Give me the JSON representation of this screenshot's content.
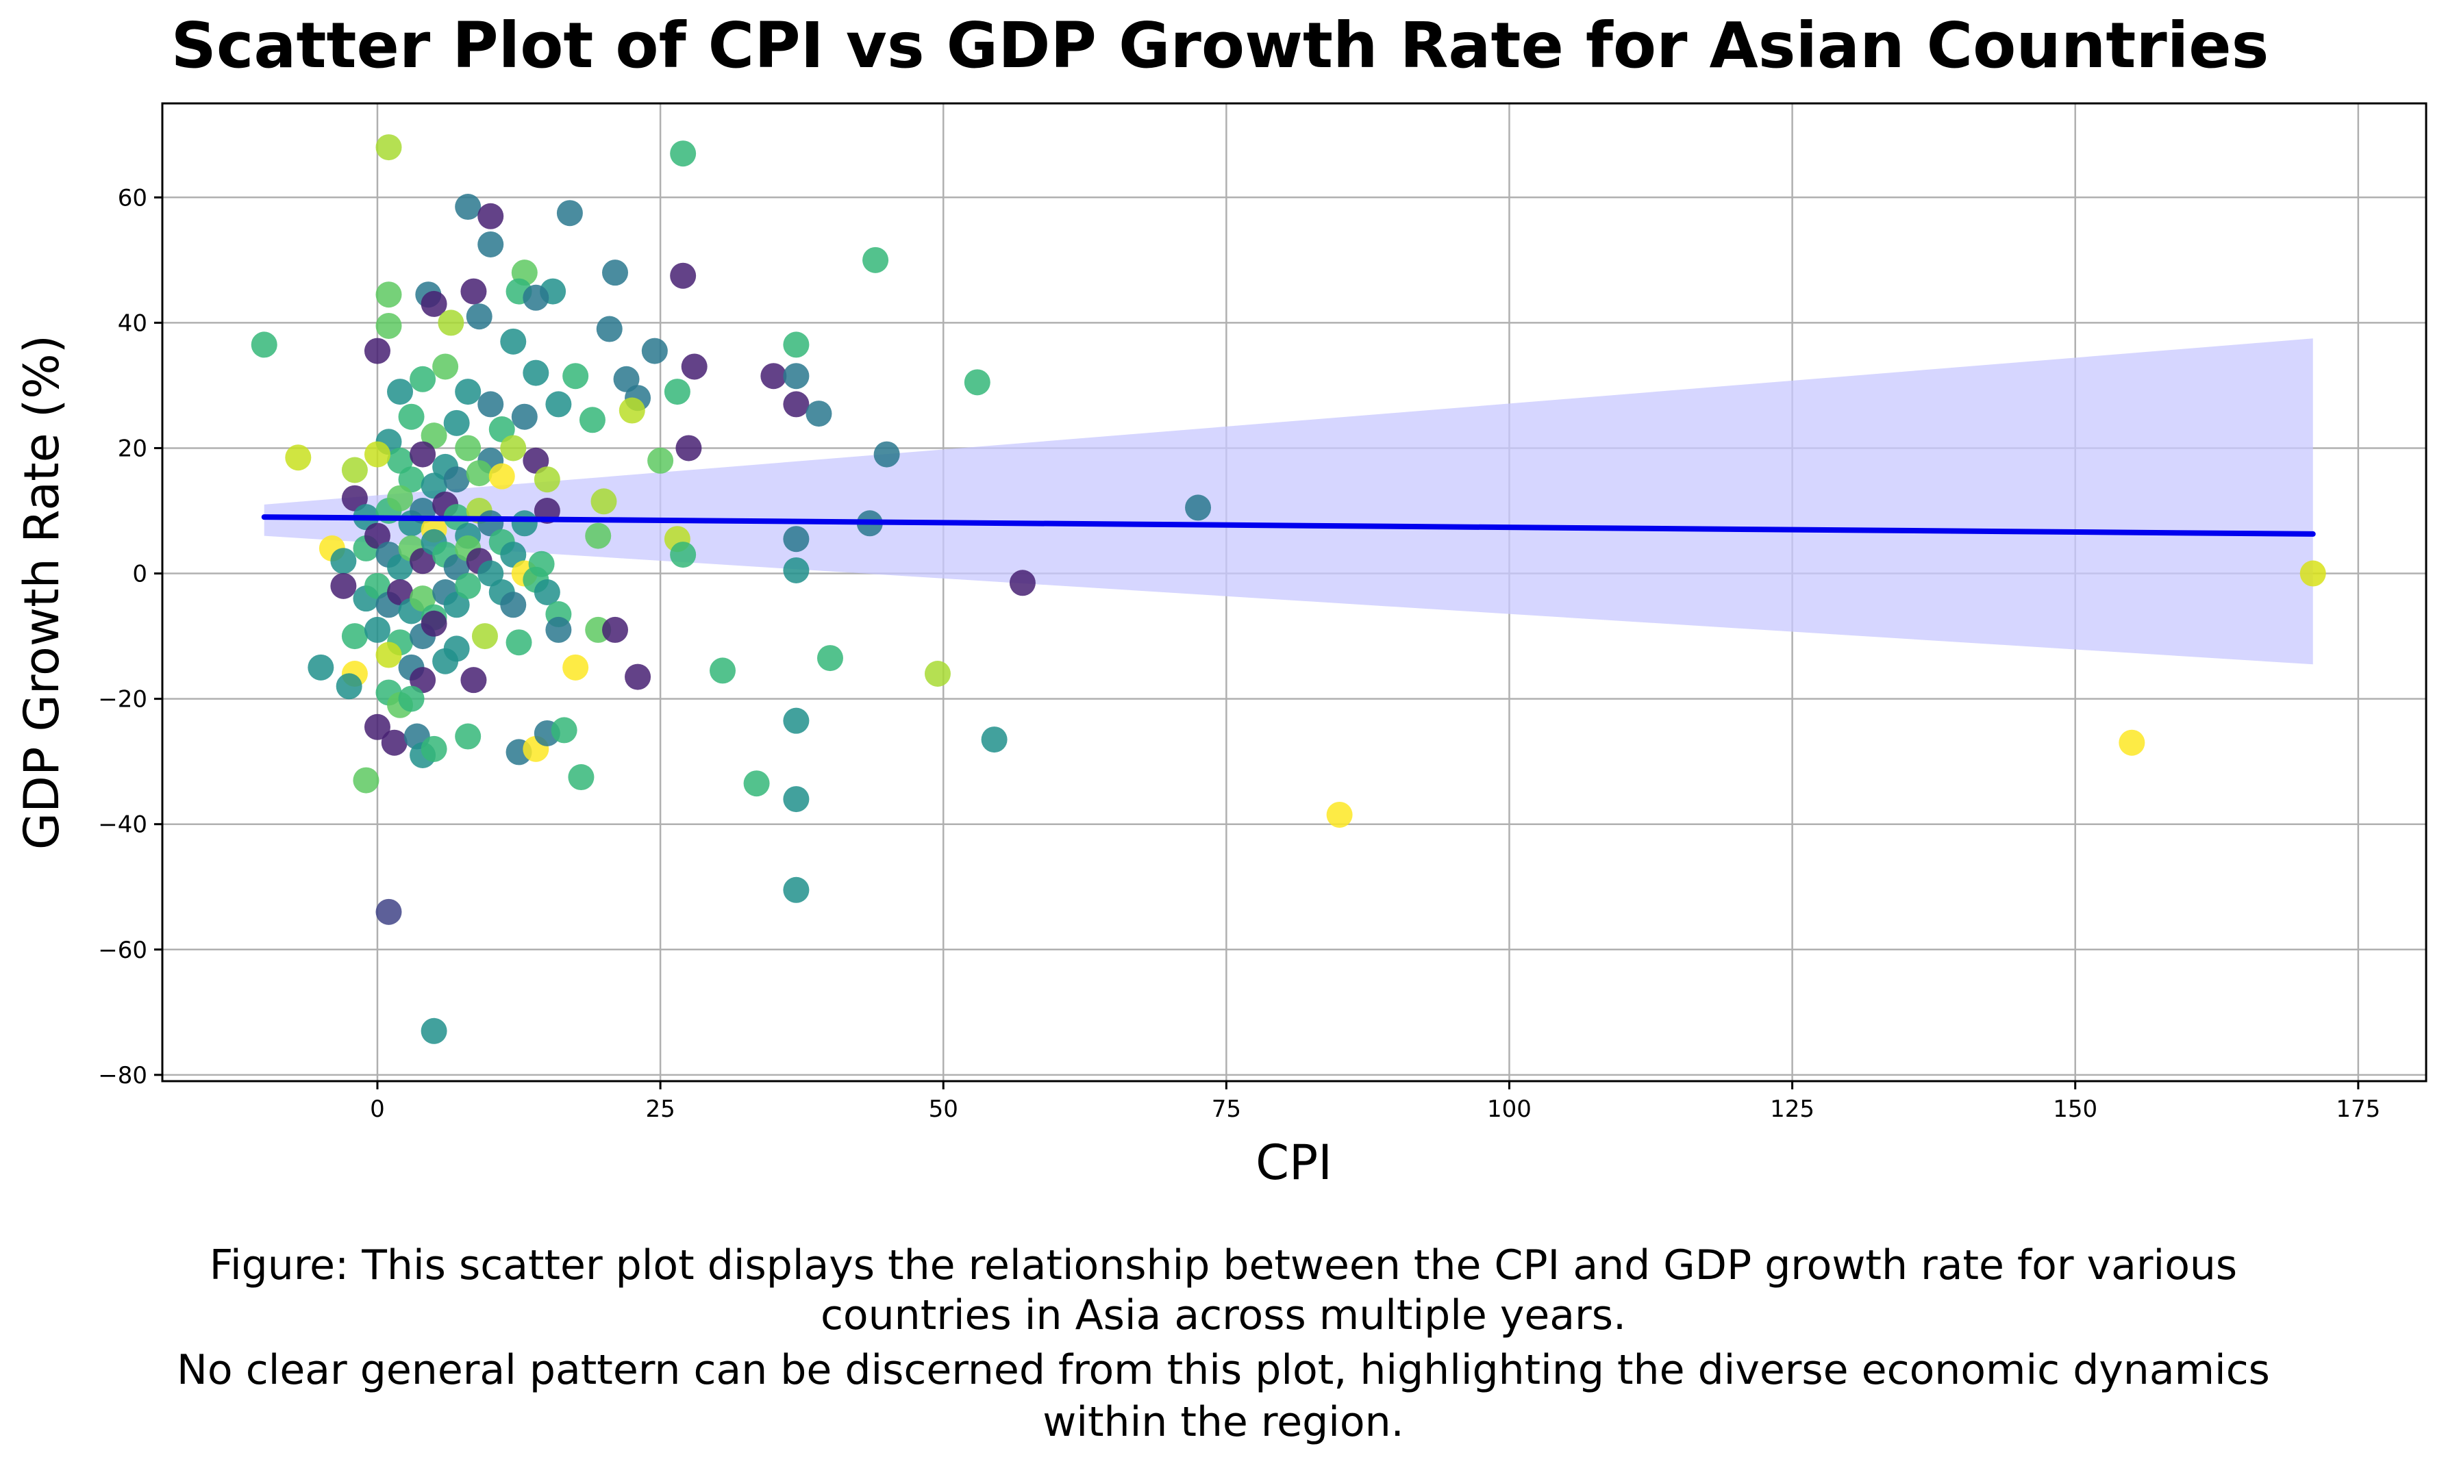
{
  "chart_data": {
    "type": "scatter",
    "title": "Scatter Plot of CPI vs GDP Growth Rate for Asian Countries",
    "xlabel": "CPI",
    "ylabel": "GDP Growth Rate (%)",
    "xlim": [
      -19,
      181
    ],
    "ylim": [
      -81,
      75
    ],
    "xticks": [
      0,
      25,
      50,
      75,
      100,
      125,
      150,
      175
    ],
    "yticks": [
      -80,
      -60,
      -40,
      -20,
      0,
      20,
      40,
      60
    ],
    "xtick_labels": [
      "0",
      "25",
      "50",
      "75",
      "100",
      "125",
      "150",
      "175"
    ],
    "ytick_labels": [
      "−80",
      "−60",
      "−40",
      "−20",
      "0",
      "20",
      "40",
      "60"
    ],
    "grid": true,
    "regression": {
      "line": [
        [
          -10,
          9.0
        ],
        [
          171,
          6.3
        ]
      ],
      "ci_upper": [
        [
          -10,
          11.0
        ],
        [
          171,
          37.5
        ]
      ],
      "ci_lower": [
        [
          -10,
          6.0
        ],
        [
          171,
          -14.5
        ]
      ],
      "line_color": "#0000ee",
      "band_color": "#c8c8ff"
    },
    "points": [
      {
        "x": 1,
        "y": 68,
        "c": "#a8db34"
      },
      {
        "x": 27,
        "y": 67,
        "c": "#35b779"
      },
      {
        "x": 8,
        "y": 58.5,
        "c": "#2a788e"
      },
      {
        "x": 17,
        "y": 57.5,
        "c": "#2a788e"
      },
      {
        "x": 10,
        "y": 57,
        "c": "#482173"
      },
      {
        "x": 10,
        "y": 52.5,
        "c": "#2a788e"
      },
      {
        "x": 44,
        "y": 50,
        "c": "#35b779"
      },
      {
        "x": 27,
        "y": 47.5,
        "c": "#482173"
      },
      {
        "x": 21,
        "y": 48,
        "c": "#2a788e"
      },
      {
        "x": 13,
        "y": 48,
        "c": "#5ec962"
      },
      {
        "x": 1,
        "y": 44.5,
        "c": "#5ec962"
      },
      {
        "x": 4.5,
        "y": 44.5,
        "c": "#2a788e"
      },
      {
        "x": 5,
        "y": 43,
        "c": "#482173"
      },
      {
        "x": 8.5,
        "y": 45,
        "c": "#482173"
      },
      {
        "x": 12.5,
        "y": 45,
        "c": "#35b779"
      },
      {
        "x": 15.5,
        "y": 45,
        "c": "#21918c"
      },
      {
        "x": 14,
        "y": 44,
        "c": "#2a788e"
      },
      {
        "x": 9,
        "y": 41,
        "c": "#2a788e"
      },
      {
        "x": 1,
        "y": 39.5,
        "c": "#5ec962"
      },
      {
        "x": 6.5,
        "y": 40,
        "c": "#a8db34"
      },
      {
        "x": 20.5,
        "y": 39,
        "c": "#2a788e"
      },
      {
        "x": -10,
        "y": 36.5,
        "c": "#35b779"
      },
      {
        "x": 37,
        "y": 36.5,
        "c": "#35b779"
      },
      {
        "x": 12,
        "y": 37,
        "c": "#21918c"
      },
      {
        "x": 0,
        "y": 35.5,
        "c": "#482173"
      },
      {
        "x": 24.5,
        "y": 35.5,
        "c": "#2a788e"
      },
      {
        "x": 28,
        "y": 33,
        "c": "#482173"
      },
      {
        "x": 35,
        "y": 31.5,
        "c": "#482173"
      },
      {
        "x": 37,
        "y": 31.5,
        "c": "#2a788e"
      },
      {
        "x": 53,
        "y": 30.5,
        "c": "#35b779"
      },
      {
        "x": 22,
        "y": 31,
        "c": "#2a788e"
      },
      {
        "x": 14,
        "y": 32,
        "c": "#21918c"
      },
      {
        "x": 17.5,
        "y": 31.5,
        "c": "#35b779"
      },
      {
        "x": 26.5,
        "y": 29,
        "c": "#35b779"
      },
      {
        "x": 37,
        "y": 27,
        "c": "#482173"
      },
      {
        "x": 39,
        "y": 25.5,
        "c": "#2a788e"
      },
      {
        "x": 23,
        "y": 28,
        "c": "#2a788e"
      },
      {
        "x": 22.5,
        "y": 26,
        "c": "#bade28"
      },
      {
        "x": 19,
        "y": 24.5,
        "c": "#35b779"
      },
      {
        "x": 16,
        "y": 27,
        "c": "#21918c"
      },
      {
        "x": 2,
        "y": 29,
        "c": "#21918c"
      },
      {
        "x": 4,
        "y": 31,
        "c": "#35b779"
      },
      {
        "x": 6,
        "y": 33,
        "c": "#5ec962"
      },
      {
        "x": 8,
        "y": 29,
        "c": "#21918c"
      },
      {
        "x": 10,
        "y": 27,
        "c": "#2a788e"
      },
      {
        "x": 3,
        "y": 25,
        "c": "#35b779"
      },
      {
        "x": 5,
        "y": 22,
        "c": "#5ec962"
      },
      {
        "x": 7,
        "y": 24,
        "c": "#21918c"
      },
      {
        "x": 11,
        "y": 23,
        "c": "#35b779"
      },
      {
        "x": 13,
        "y": 25,
        "c": "#2a788e"
      },
      {
        "x": 1,
        "y": 21,
        "c": "#21918c"
      },
      {
        "x": 2,
        "y": 18,
        "c": "#35b779"
      },
      {
        "x": 4,
        "y": 19,
        "c": "#482173"
      },
      {
        "x": 6,
        "y": 17,
        "c": "#21918c"
      },
      {
        "x": 8,
        "y": 20,
        "c": "#5ec962"
      },
      {
        "x": 10,
        "y": 18,
        "c": "#2a788e"
      },
      {
        "x": 12,
        "y": 20,
        "c": "#a8db34"
      },
      {
        "x": 14,
        "y": 18,
        "c": "#482173"
      },
      {
        "x": -7,
        "y": 18.5,
        "c": "#c8e020"
      },
      {
        "x": 0,
        "y": 19,
        "c": "#c8e020"
      },
      {
        "x": -2,
        "y": 16.5,
        "c": "#a8db34"
      },
      {
        "x": 3,
        "y": 15,
        "c": "#35b779"
      },
      {
        "x": 5,
        "y": 14,
        "c": "#21918c"
      },
      {
        "x": 7,
        "y": 15,
        "c": "#2a788e"
      },
      {
        "x": 9,
        "y": 16,
        "c": "#5ec962"
      },
      {
        "x": 11,
        "y": 15.5,
        "c": "#fde725"
      },
      {
        "x": 15,
        "y": 15,
        "c": "#a8db34"
      },
      {
        "x": 20,
        "y": 11.5,
        "c": "#a8db34"
      },
      {
        "x": 25,
        "y": 18,
        "c": "#5ec962"
      },
      {
        "x": 27.5,
        "y": 20,
        "c": "#482173"
      },
      {
        "x": 45,
        "y": 19,
        "c": "#2a788e"
      },
      {
        "x": 72.5,
        "y": 10.5,
        "c": "#2a788e"
      },
      {
        "x": 43.5,
        "y": 8,
        "c": "#2a788e"
      },
      {
        "x": 19.5,
        "y": 6,
        "c": "#5ec962"
      },
      {
        "x": 15,
        "y": 10,
        "c": "#482173"
      },
      {
        "x": 13,
        "y": 8,
        "c": "#21918c"
      },
      {
        "x": -2,
        "y": 12,
        "c": "#482173"
      },
      {
        "x": -1,
        "y": 9,
        "c": "#21918c"
      },
      {
        "x": 1,
        "y": 10,
        "c": "#35b779"
      },
      {
        "x": 2,
        "y": 12,
        "c": "#5ec962"
      },
      {
        "x": 3,
        "y": 8,
        "c": "#21918c"
      },
      {
        "x": 4,
        "y": 10,
        "c": "#2a788e"
      },
      {
        "x": 5,
        "y": 7,
        "c": "#fde725"
      },
      {
        "x": 6,
        "y": 11,
        "c": "#482173"
      },
      {
        "x": 7,
        "y": 9,
        "c": "#35b779"
      },
      {
        "x": 8,
        "y": 6,
        "c": "#21918c"
      },
      {
        "x": 9,
        "y": 10,
        "c": "#a8db34"
      },
      {
        "x": 10,
        "y": 8,
        "c": "#2a788e"
      },
      {
        "x": 11,
        "y": 5,
        "c": "#35b779"
      },
      {
        "x": 12,
        "y": 3,
        "c": "#21918c"
      },
      {
        "x": -4,
        "y": 4,
        "c": "#fde725"
      },
      {
        "x": -3,
        "y": 2,
        "c": "#21918c"
      },
      {
        "x": -1,
        "y": 4,
        "c": "#35b779"
      },
      {
        "x": 0,
        "y": 6,
        "c": "#482173"
      },
      {
        "x": 1,
        "y": 3,
        "c": "#2a788e"
      },
      {
        "x": 2,
        "y": 1,
        "c": "#21918c"
      },
      {
        "x": 3,
        "y": 4,
        "c": "#5ec962"
      },
      {
        "x": 4,
        "y": 2,
        "c": "#482173"
      },
      {
        "x": 5,
        "y": 5,
        "c": "#21918c"
      },
      {
        "x": 6,
        "y": 3,
        "c": "#35b779"
      },
      {
        "x": 7,
        "y": 1,
        "c": "#2a788e"
      },
      {
        "x": 8,
        "y": 4,
        "c": "#5ec962"
      },
      {
        "x": 9,
        "y": 2,
        "c": "#482173"
      },
      {
        "x": 10,
        "y": 0,
        "c": "#21918c"
      },
      {
        "x": 13,
        "y": 0,
        "c": "#fde725"
      },
      {
        "x": 14.5,
        "y": 1.5,
        "c": "#35b779"
      },
      {
        "x": 26.5,
        "y": 5.5,
        "c": "#bade28"
      },
      {
        "x": 27,
        "y": 3,
        "c": "#35b779"
      },
      {
        "x": 37,
        "y": 5.5,
        "c": "#2a788e"
      },
      {
        "x": 37,
        "y": 0.5,
        "c": "#21918c"
      },
      {
        "x": 57,
        "y": -1.5,
        "c": "#482173"
      },
      {
        "x": 171,
        "y": 0,
        "c": "#d8e219"
      },
      {
        "x": -3,
        "y": -2,
        "c": "#482173"
      },
      {
        "x": -1,
        "y": -4,
        "c": "#21918c"
      },
      {
        "x": 0,
        "y": -2,
        "c": "#35b779"
      },
      {
        "x": 1,
        "y": -5,
        "c": "#2a788e"
      },
      {
        "x": 2,
        "y": -3,
        "c": "#482173"
      },
      {
        "x": 3,
        "y": -6,
        "c": "#21918c"
      },
      {
        "x": 4,
        "y": -4,
        "c": "#5ec962"
      },
      {
        "x": 5,
        "y": -7,
        "c": "#35b779"
      },
      {
        "x": 6,
        "y": -3,
        "c": "#2a788e"
      },
      {
        "x": 7,
        "y": -5,
        "c": "#21918c"
      },
      {
        "x": 8,
        "y": -2,
        "c": "#35b779"
      },
      {
        "x": 11,
        "y": -3,
        "c": "#21918c"
      },
      {
        "x": 12,
        "y": -5,
        "c": "#2a788e"
      },
      {
        "x": 14,
        "y": -1,
        "c": "#35b779"
      },
      {
        "x": 15,
        "y": -3,
        "c": "#21918c"
      },
      {
        "x": 16,
        "y": -6.5,
        "c": "#35b779"
      },
      {
        "x": 16,
        "y": -9,
        "c": "#2a788e"
      },
      {
        "x": 19.5,
        "y": -9,
        "c": "#5ec962"
      },
      {
        "x": 21,
        "y": -9,
        "c": "#482173"
      },
      {
        "x": -2,
        "y": -10,
        "c": "#35b779"
      },
      {
        "x": 0,
        "y": -9,
        "c": "#21918c"
      },
      {
        "x": 2,
        "y": -11,
        "c": "#35b779"
      },
      {
        "x": 4,
        "y": -10,
        "c": "#2a788e"
      },
      {
        "x": 5,
        "y": -8,
        "c": "#482173"
      },
      {
        "x": 7,
        "y": -12,
        "c": "#21918c"
      },
      {
        "x": 9.5,
        "y": -10,
        "c": "#a8db34"
      },
      {
        "x": 12.5,
        "y": -11,
        "c": "#35b779"
      },
      {
        "x": -5,
        "y": -15,
        "c": "#21918c"
      },
      {
        "x": -2,
        "y": -16,
        "c": "#fde725"
      },
      {
        "x": 1,
        "y": -13,
        "c": "#c8e020"
      },
      {
        "x": 3,
        "y": -15,
        "c": "#2a788e"
      },
      {
        "x": 4,
        "y": -17,
        "c": "#482173"
      },
      {
        "x": 6,
        "y": -14,
        "c": "#21918c"
      },
      {
        "x": 8.5,
        "y": -17,
        "c": "#482173"
      },
      {
        "x": -2.5,
        "y": -18,
        "c": "#21918c"
      },
      {
        "x": 1,
        "y": -19,
        "c": "#35b779"
      },
      {
        "x": 2,
        "y": -21,
        "c": "#5ec962"
      },
      {
        "x": 3,
        "y": -20,
        "c": "#35b779"
      },
      {
        "x": 17.5,
        "y": -15,
        "c": "#fde725"
      },
      {
        "x": 23,
        "y": -16.5,
        "c": "#482173"
      },
      {
        "x": 30.5,
        "y": -15.5,
        "c": "#35b779"
      },
      {
        "x": 40,
        "y": -13.5,
        "c": "#35b779"
      },
      {
        "x": 49.5,
        "y": -16,
        "c": "#a8db34"
      },
      {
        "x": 37,
        "y": -23.5,
        "c": "#21918c"
      },
      {
        "x": 0,
        "y": -24.5,
        "c": "#482173"
      },
      {
        "x": 1.5,
        "y": -27,
        "c": "#482173"
      },
      {
        "x": 3.5,
        "y": -26,
        "c": "#2a788e"
      },
      {
        "x": 4,
        "y": -29,
        "c": "#21918c"
      },
      {
        "x": 5,
        "y": -28,
        "c": "#35b779"
      },
      {
        "x": 8,
        "y": -26,
        "c": "#35b779"
      },
      {
        "x": 12.5,
        "y": -28.5,
        "c": "#2a788e"
      },
      {
        "x": 14,
        "y": -28,
        "c": "#fde725"
      },
      {
        "x": 15,
        "y": -25.5,
        "c": "#2a788e"
      },
      {
        "x": 16.5,
        "y": -25,
        "c": "#35b779"
      },
      {
        "x": 54.5,
        "y": -26.5,
        "c": "#21918c"
      },
      {
        "x": 155,
        "y": -27,
        "c": "#fde725"
      },
      {
        "x": -1,
        "y": -33,
        "c": "#5ec962"
      },
      {
        "x": 18,
        "y": -32.5,
        "c": "#35b779"
      },
      {
        "x": 33.5,
        "y": -33.5,
        "c": "#35b779"
      },
      {
        "x": 37,
        "y": -36,
        "c": "#21918c"
      },
      {
        "x": 85,
        "y": -38.5,
        "c": "#fde725"
      },
      {
        "x": 37,
        "y": -50.5,
        "c": "#21918c"
      },
      {
        "x": 1,
        "y": -54,
        "c": "#414487"
      },
      {
        "x": 5,
        "y": -73,
        "c": "#21918c"
      }
    ]
  },
  "caption": [
    "Figure: This scatter plot displays the relationship between the CPI and GDP growth rate for various",
    "countries in Asia across multiple years.",
    "No clear general pattern can be discerned from this plot, highlighting the diverse economic dynamics",
    "within the region."
  ]
}
